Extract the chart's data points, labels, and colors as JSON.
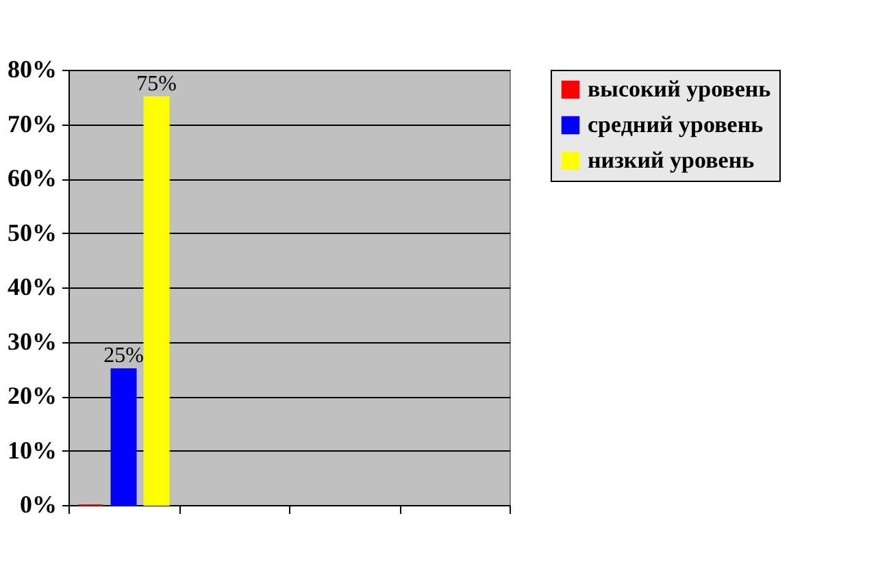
{
  "chart_data": {
    "type": "bar",
    "categories": [
      null,
      null,
      null,
      null
    ],
    "series": [
      {
        "name": "высокий уровень",
        "color": "#ff0000",
        "values": [
          0,
          null,
          null,
          null
        ]
      },
      {
        "name": "средний уровень",
        "color": "#0000ff",
        "values": [
          25,
          null,
          null,
          null
        ],
        "value_labels": [
          "25%",
          null,
          null,
          null
        ]
      },
      {
        "name": "низкий уровень",
        "color": "#ffff00",
        "values": [
          75,
          null,
          null,
          null
        ],
        "value_labels": [
          "75%",
          null,
          null,
          null
        ]
      }
    ],
    "ylim": [
      0,
      80
    ],
    "yticks": [
      {
        "value": 0,
        "label": "0%"
      },
      {
        "value": 10,
        "label": "10%"
      },
      {
        "value": 20,
        "label": "20%"
      },
      {
        "value": 30,
        "label": "30%"
      },
      {
        "value": 40,
        "label": "40%"
      },
      {
        "value": 50,
        "label": "50%"
      },
      {
        "value": 60,
        "label": "60%"
      },
      {
        "value": 70,
        "label": "70%"
      },
      {
        "value": 80,
        "label": "80%"
      }
    ],
    "grid": "y",
    "legend": "right",
    "tick_labels": "y"
  }
}
